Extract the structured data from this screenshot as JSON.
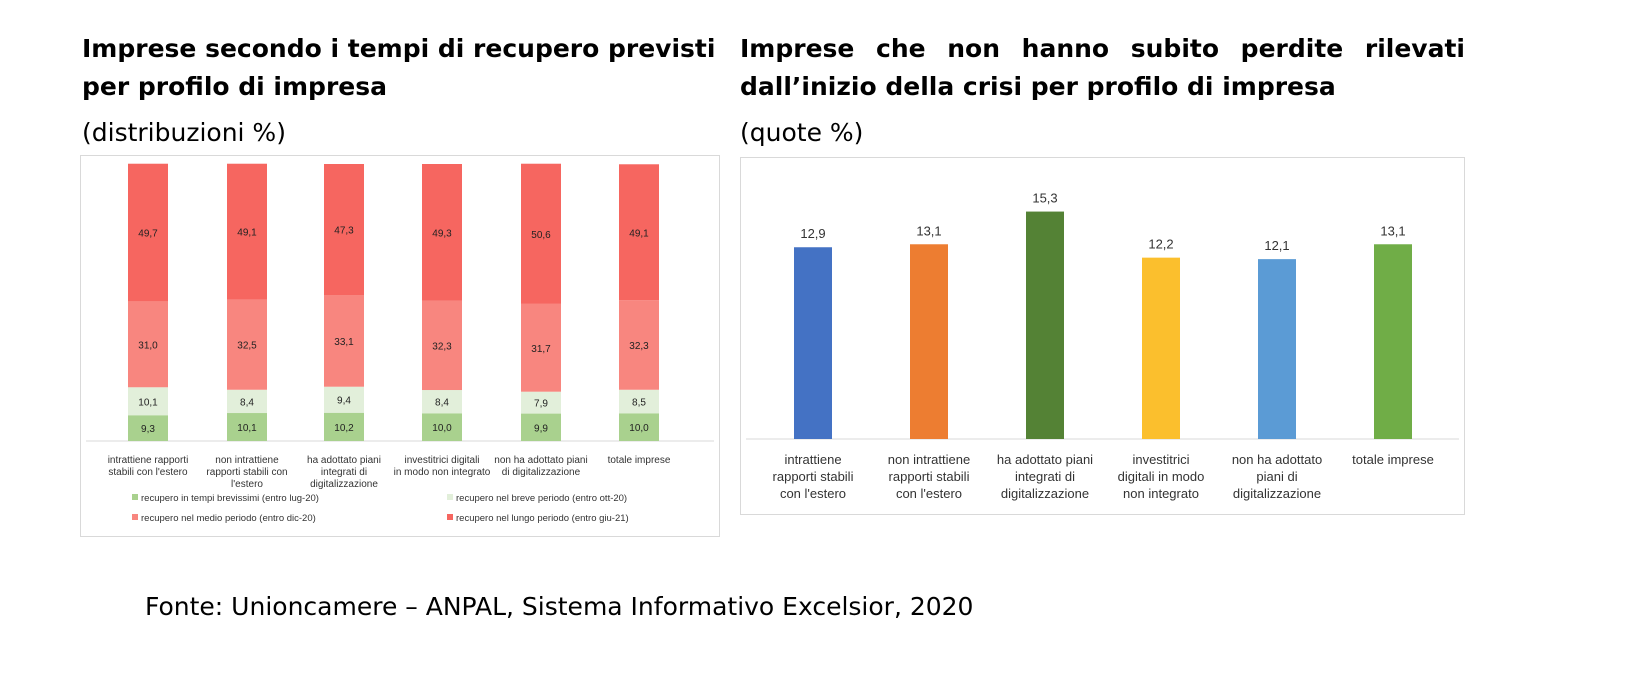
{
  "source": "Fonte: Unioncamere – ANPAL, Sistema Informativo Excelsior, 2020",
  "chart_data": [
    {
      "type": "bar",
      "stacked": true,
      "title": "Imprese secondo i tempi di recupero previsti per profilo di impresa",
      "subtitle": "(distribuzioni %)",
      "categories": [
        "intrattiene rapporti stabili con l'estero",
        "non intrattiene rapporti stabili con l'estero",
        "ha adottato piani integrati di digitalizzazione",
        "investitrici digitali in modo non integrato",
        "non ha adottato piani di digitalizzazione",
        "totale imprese"
      ],
      "series": [
        {
          "name": "recupero in tempi brevissimi (entro lug-20)",
          "color": "#a9d18e",
          "values": [
            9.3,
            10.1,
            10.2,
            10.0,
            9.9,
            10.0
          ],
          "labels": [
            "9,3",
            "10,1",
            "10,2",
            "10,0",
            "9,9",
            "10,0"
          ]
        },
        {
          "name": "recupero nel breve periodo (entro ott-20)",
          "color": "#e2efda",
          "values": [
            10.1,
            8.4,
            9.4,
            8.4,
            7.9,
            8.5
          ],
          "labels": [
            "10,1",
            "8,4",
            "9,4",
            "8,4",
            "7,9",
            "8,5"
          ]
        },
        {
          "name": "recupero nel medio periodo (entro dic-20)",
          "color": "#f8867f",
          "values": [
            31.0,
            32.5,
            33.1,
            32.3,
            31.7,
            32.3
          ],
          "labels": [
            "31,0",
            "32,5",
            "33,1",
            "32,3",
            "31,7",
            "32,3"
          ]
        },
        {
          "name": "recupero nel lungo periodo    (entro giu-21)",
          "color": "#f66660",
          "values": [
            49.7,
            49.1,
            47.3,
            49.3,
            50.6,
            49.1
          ],
          "labels": [
            "49,7",
            "49,1",
            "47,3",
            "49,3",
            "50,6",
            "49,1"
          ]
        }
      ],
      "ylim": [
        0,
        100
      ],
      "legend": "bottom",
      "grid": false
    },
    {
      "type": "bar",
      "title": "Imprese che non hanno subito perdite rilevati dall’inizio della crisi per profilo di impresa",
      "subtitle": "(quote %)",
      "categories": [
        "intrattiene rapporti stabili con l'estero",
        "non intrattiene rapporti stabili con l'estero",
        "ha adottato piani integrati di digitalizzazione",
        "investitrici digitali in modo non integrato",
        "non ha adottato piani di digitalizzazione",
        "totale imprese"
      ],
      "values": [
        12.9,
        13.1,
        15.3,
        12.2,
        12.1,
        13.1
      ],
      "labels": [
        "12,9",
        "13,1",
        "15,3",
        "12,2",
        "12,1",
        "13,1"
      ],
      "colors": [
        "#4472c4",
        "#ed7d31",
        "#548235",
        "#fbbf2d",
        "#5b9bd5",
        "#70ad47"
      ],
      "ylim": [
        0,
        18.5
      ],
      "grid": false
    }
  ]
}
